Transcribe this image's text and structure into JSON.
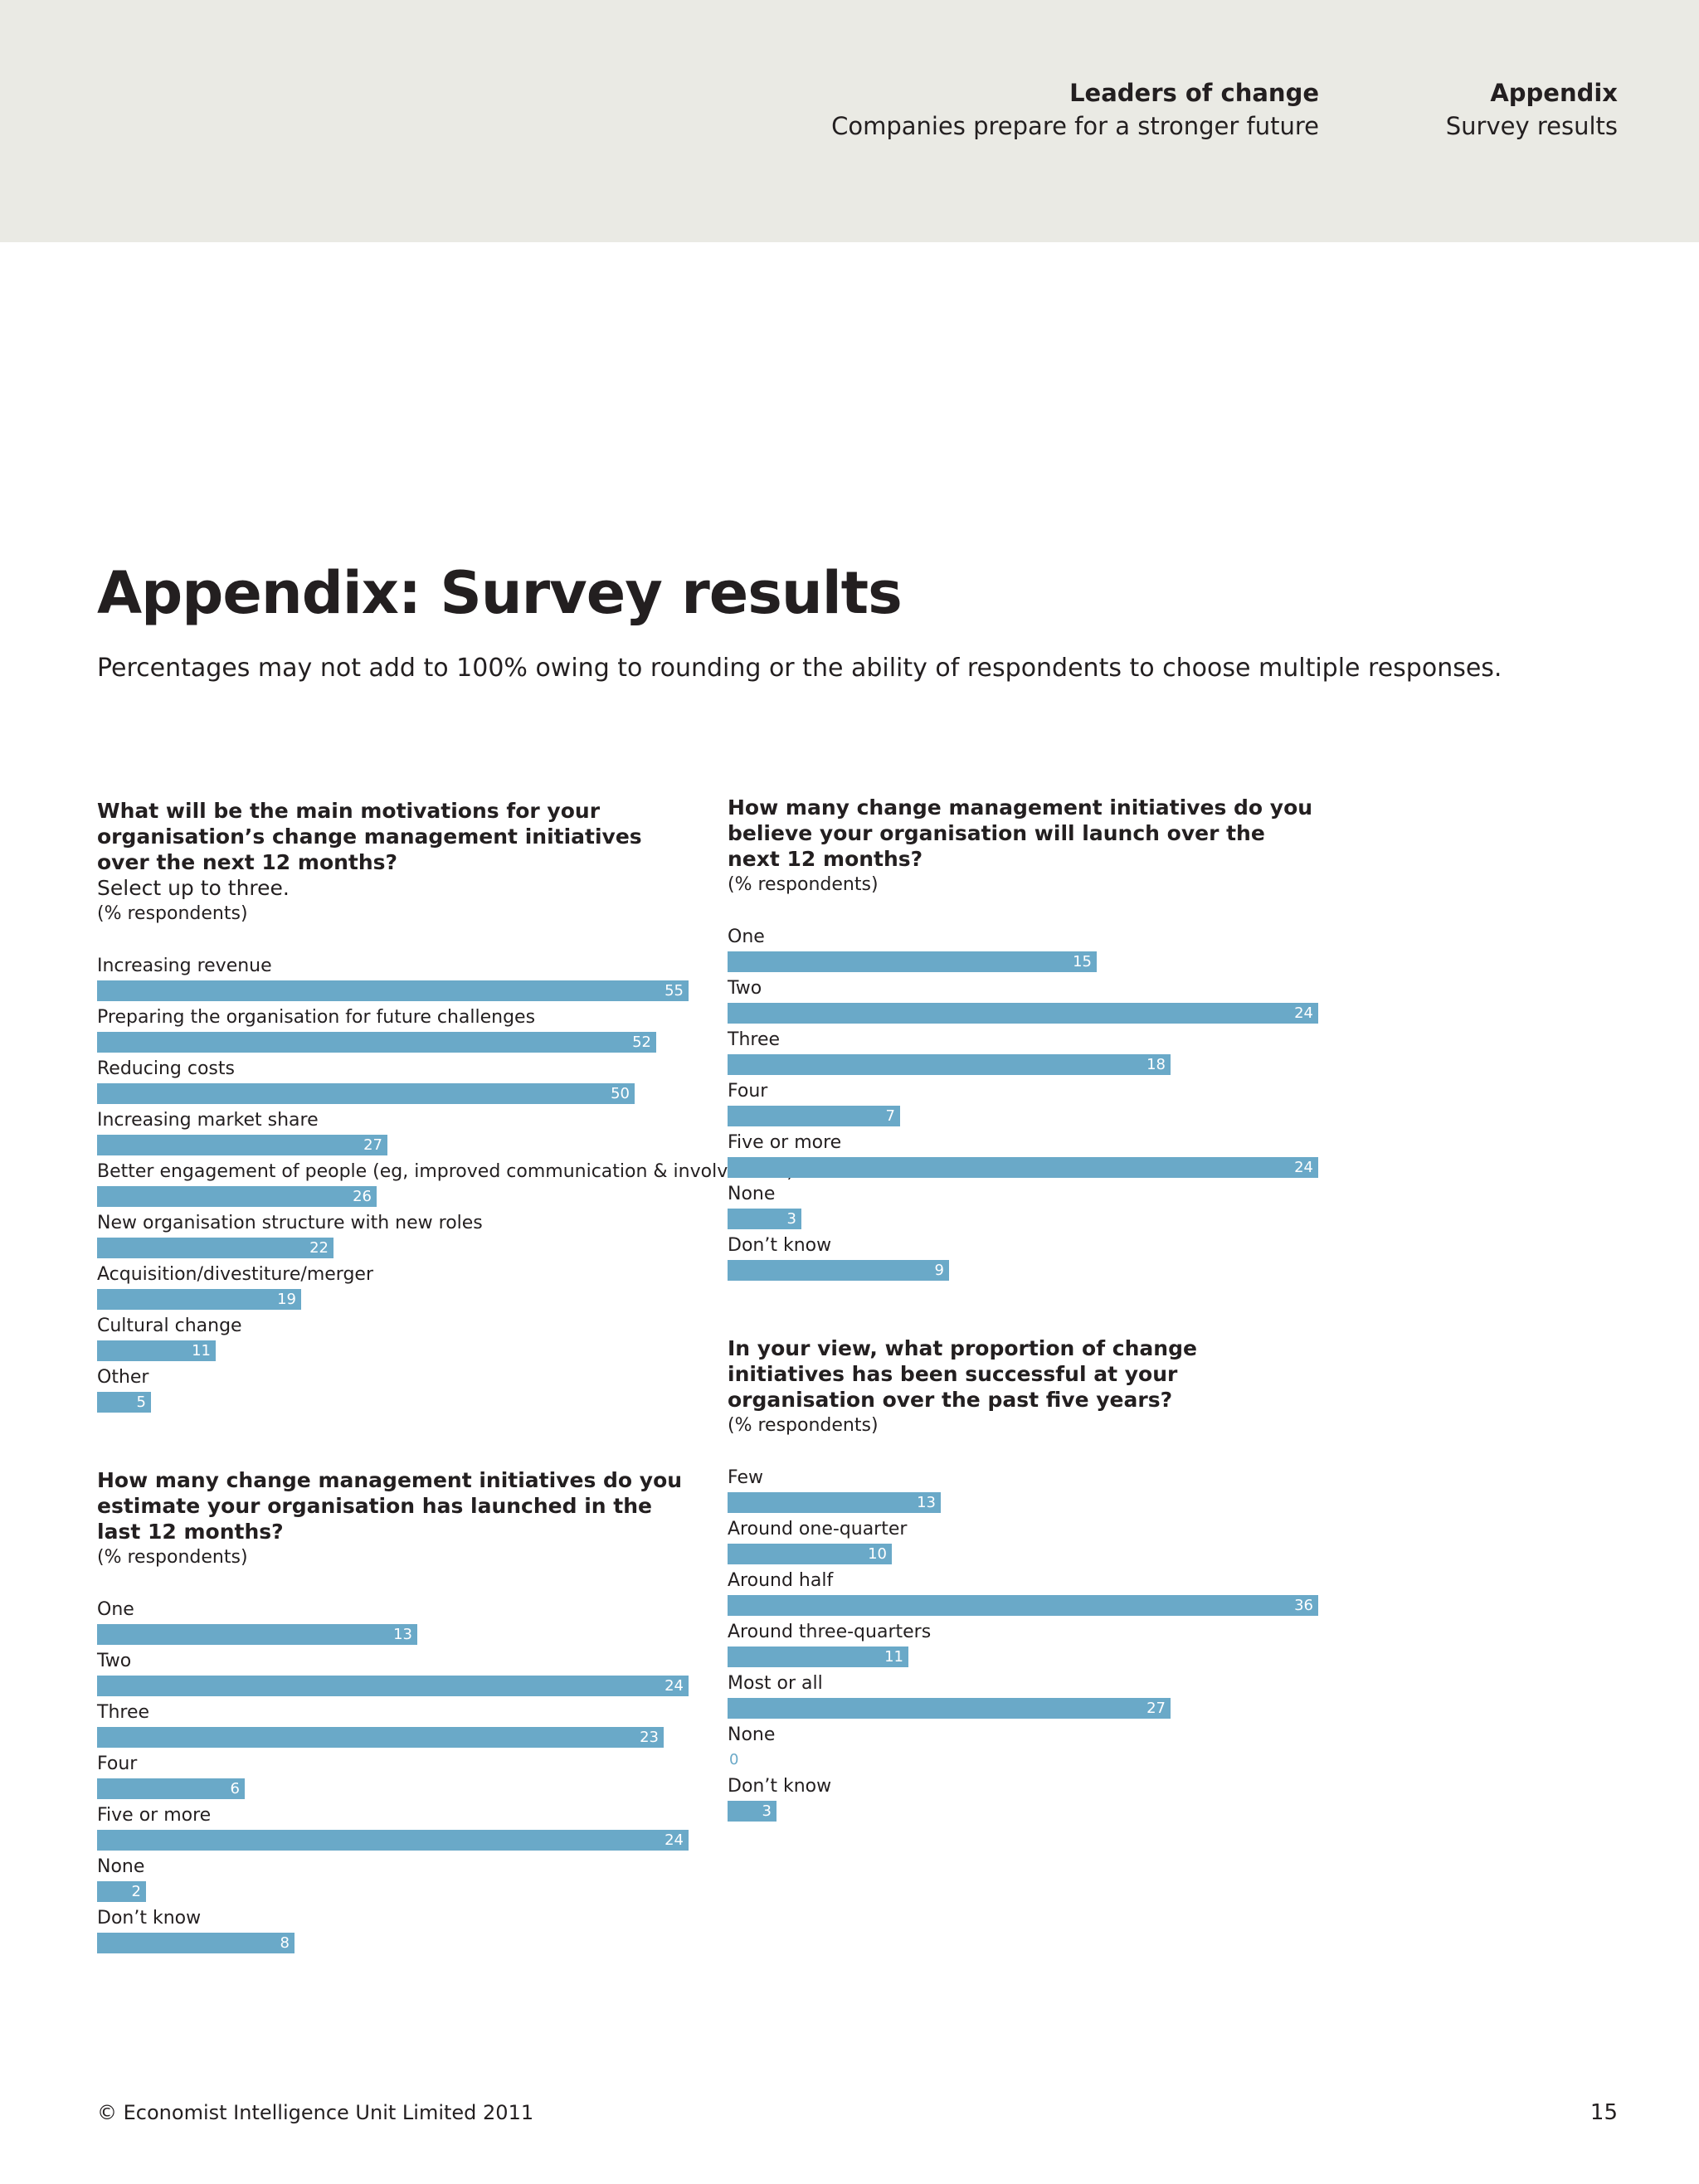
{
  "header": {
    "report_title": "Leaders of change",
    "report_subtitle": "Companies prepare for a stronger future",
    "section_title": "Appendix",
    "section_subtitle": "Survey results"
  },
  "page": {
    "title": "Appendix: Survey results",
    "subtitle": "Percentages may not add to 100% owing to rounding or the ability of respondents to choose multiple responses."
  },
  "footer": {
    "copyright": "© Economist Intelligence Unit Limited 2011",
    "page_number": "15"
  },
  "colors": {
    "bar": "#6aa9c8",
    "header_band": "#eaeae4"
  },
  "chart_data": [
    {
      "id": "motivations",
      "type": "bar",
      "title": "What will be the main motivations for your organisation’s change management initiatives over the next 12 months?",
      "instruction": "Select up to three.",
      "unit": "(% respondents)",
      "categories": [
        "Increasing revenue",
        "Preparing the organisation for future challenges",
        "Reducing costs",
        "Increasing market share",
        "Better engagement of people (eg, improved communication & involvement)",
        "New organisation structure with new roles",
        "Acquisition/divestiture/merger",
        "Cultural change",
        "Other"
      ],
      "values": [
        55,
        52,
        50,
        27,
        26,
        22,
        19,
        11,
        5
      ],
      "xlim": [
        0,
        55
      ]
    },
    {
      "id": "launch-next",
      "type": "bar",
      "title": "How many change management initiatives do you believe your organisation will launch over the next 12 months?",
      "instruction": "",
      "unit": "(% respondents)",
      "categories": [
        "One",
        "Two",
        "Three",
        "Four",
        "Five or more",
        "None",
        "Don’t know"
      ],
      "values": [
        15,
        24,
        18,
        7,
        24,
        3,
        9
      ],
      "xlim": [
        0,
        24
      ]
    },
    {
      "id": "success",
      "type": "bar",
      "title": "In your view, what proportion of change initiatives has been successful at your organisation over the past five years?",
      "instruction": "",
      "unit": "(% respondents)",
      "categories": [
        "Few",
        "Around one-quarter",
        "Around half",
        "Around three-quarters",
        "Most or all",
        "None",
        "Don’t know"
      ],
      "values": [
        13,
        10,
        36,
        11,
        27,
        0,
        3
      ],
      "xlim": [
        0,
        36
      ]
    },
    {
      "id": "launched-last",
      "type": "bar",
      "title": "How many change management initiatives do you estimate your organisation has launched in the last 12 months?",
      "instruction": "",
      "unit": "(% respondents)",
      "categories": [
        "One",
        "Two",
        "Three",
        "Four",
        "Five or more",
        "None",
        "Don’t know"
      ],
      "values": [
        13,
        24,
        23,
        6,
        24,
        2,
        8
      ],
      "xlim": [
        0,
        24
      ]
    }
  ]
}
